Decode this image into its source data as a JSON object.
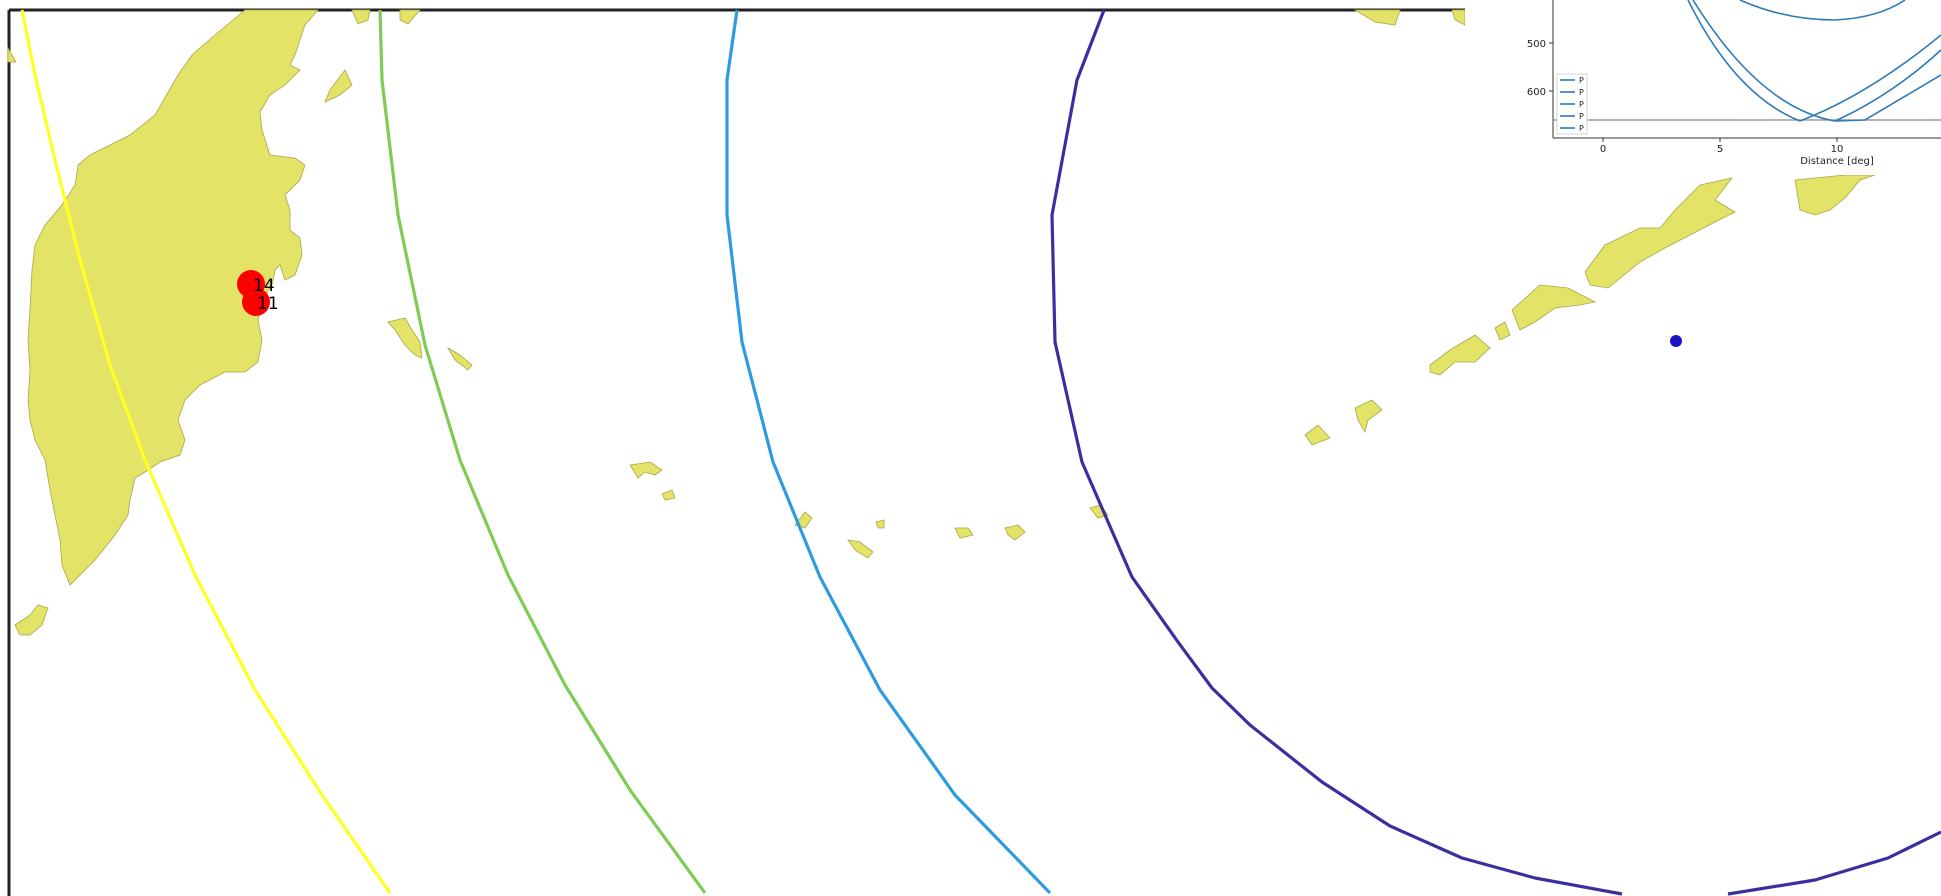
{
  "map": {
    "land_color": "#e3e367",
    "land_edge": "#a8a84a",
    "frame_color": "#222222",
    "events": [
      {
        "label": "14",
        "color": "#ff0000"
      },
      {
        "label": "11",
        "color": "#ff0000"
      }
    ],
    "station": {
      "color": "#1a14c8"
    },
    "distance_curves": [
      {
        "color": "#ffff22"
      },
      {
        "color": "#7fcc55"
      },
      {
        "color": "#2e9be0"
      },
      {
        "color": "#3b2fa0"
      }
    ]
  },
  "inset": {
    "ytick_500": "500",
    "ytick_600": "600",
    "xtick_0": "0",
    "xtick_5": "5",
    "xtick_10": "10",
    "xlabel": "Distance [deg]",
    "line_color": "#2f7ab8",
    "legend": [
      "P",
      "P",
      "P",
      "P",
      "P"
    ]
  }
}
